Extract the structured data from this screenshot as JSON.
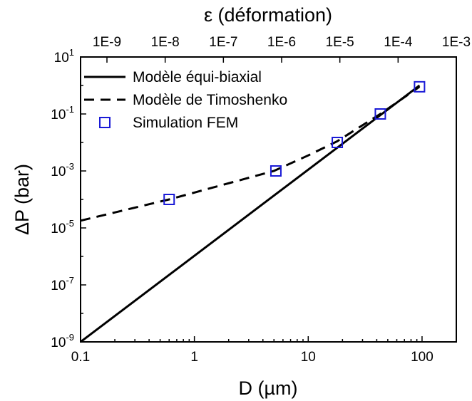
{
  "chart_data": {
    "type": "line",
    "x_scale": "log",
    "y_scale": "log",
    "xlabel": "D (µm)",
    "ylabel": "ΔP (bar)",
    "top_axis_label": "ε (déformation)",
    "xlim": [
      0.1,
      200
    ],
    "ylim": [
      1e-09,
      10
    ],
    "x_ticks": [
      0.1,
      1,
      10,
      100
    ],
    "x_tick_labels": [
      "0.1",
      "1",
      "10",
      "100"
    ],
    "y_ticks": [
      {
        "value": 1e-09,
        "base": "10",
        "exp": "-9"
      },
      {
        "value": 1e-07,
        "base": "10",
        "exp": "-7"
      },
      {
        "value": 1e-05,
        "base": "10",
        "exp": "-5"
      },
      {
        "value": 0.001,
        "base": "10",
        "exp": "-3"
      },
      {
        "value": 0.1,
        "base": "10",
        "exp": "-1"
      },
      {
        "value": 10,
        "base": "10",
        "exp": "1"
      }
    ],
    "top_ticks": [
      "1E-9",
      "1E-8",
      "1E-7",
      "1E-6",
      "1E-5",
      "1E-4",
      "1E-3"
    ],
    "grid": false,
    "legend_position": "top-left",
    "series": [
      {
        "name": "Modèle équi-biaxial",
        "style": "solid",
        "color": "#000000",
        "x": [
          0.1,
          95
        ],
        "y": [
          1e-09,
          1.0
        ]
      },
      {
        "name": "Modèle de Timoshenko",
        "style": "dashed",
        "color": "#000000",
        "x": [
          0.1,
          0.6,
          5,
          10,
          18,
          43,
          95
        ],
        "y": [
          1.8e-05,
          0.0001,
          0.001,
          0.0035,
          0.011,
          0.1,
          0.9
        ]
      },
      {
        "name": "Simulation FEM",
        "style": "markers",
        "marker": "open-square",
        "color": "#1a1ad6",
        "x": [
          0.6,
          5.2,
          18,
          43,
          95
        ],
        "y": [
          0.0001,
          0.001,
          0.01,
          0.1,
          0.9
        ]
      }
    ]
  }
}
